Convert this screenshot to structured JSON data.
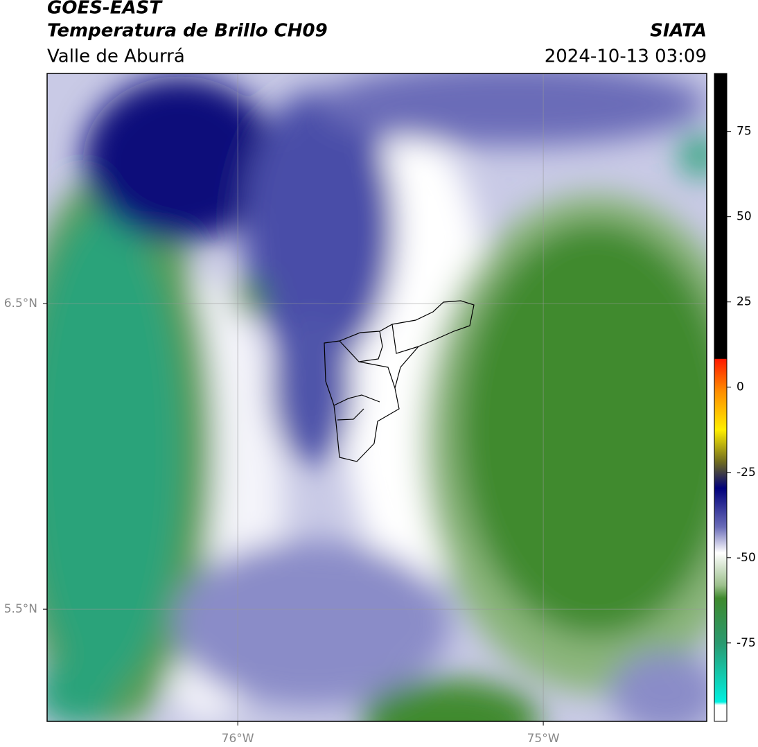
{
  "header": {
    "title": "GOES-EAST",
    "subtitle": "Temperatura de Brillo CH09",
    "region": "Valle de Aburrá",
    "source": "SIATA",
    "timestamp": "2024-10-13 03:09"
  },
  "map": {
    "xlim": [
      -76.624,
      -74.465
    ],
    "ylim": [
      5.133,
      7.253
    ],
    "xticks": [
      {
        "value": -76,
        "label": "76°W"
      },
      {
        "value": -75,
        "label": "75°W"
      }
    ],
    "yticks": [
      {
        "value": 5.5,
        "label": "5.5°N"
      },
      {
        "value": 6.5,
        "label": "6.5°N"
      }
    ],
    "grid": true
  },
  "colorbar": {
    "lim": [
      -98,
      92
    ],
    "ticks": [
      -75,
      -50,
      -25,
      0,
      25,
      50,
      75
    ]
  }
}
